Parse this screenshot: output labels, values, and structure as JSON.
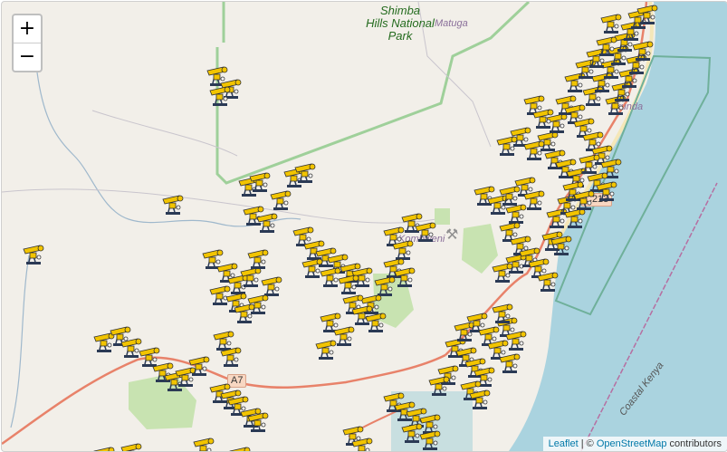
{
  "map": {
    "zoom_in": "+",
    "zoom_out": "−",
    "attribution": {
      "leaflet": "Leaflet",
      "sep": " | © ",
      "osm": "OpenStreetMap",
      "suffix": " contributors"
    },
    "labels": {
      "park": "Shimba Hills National Park",
      "park_line1": "Shimba",
      "park_line2": "Hills National",
      "park_line3": "Park",
      "matuga": "Matuga",
      "kombweni": "Kombweni",
      "ukunda_partial": "ukunda",
      "road_a7": "A7",
      "road_c213": "C213",
      "coastal_kenya": "Coastal Kenya"
    },
    "colors": {
      "land": "#f2efe9",
      "sea": "#aad3df",
      "park_border": "#8fc68a",
      "road": "#e8826a",
      "marker": "#f2c400"
    },
    "marker_icon": "oil-pumpjack-icon"
  }
}
